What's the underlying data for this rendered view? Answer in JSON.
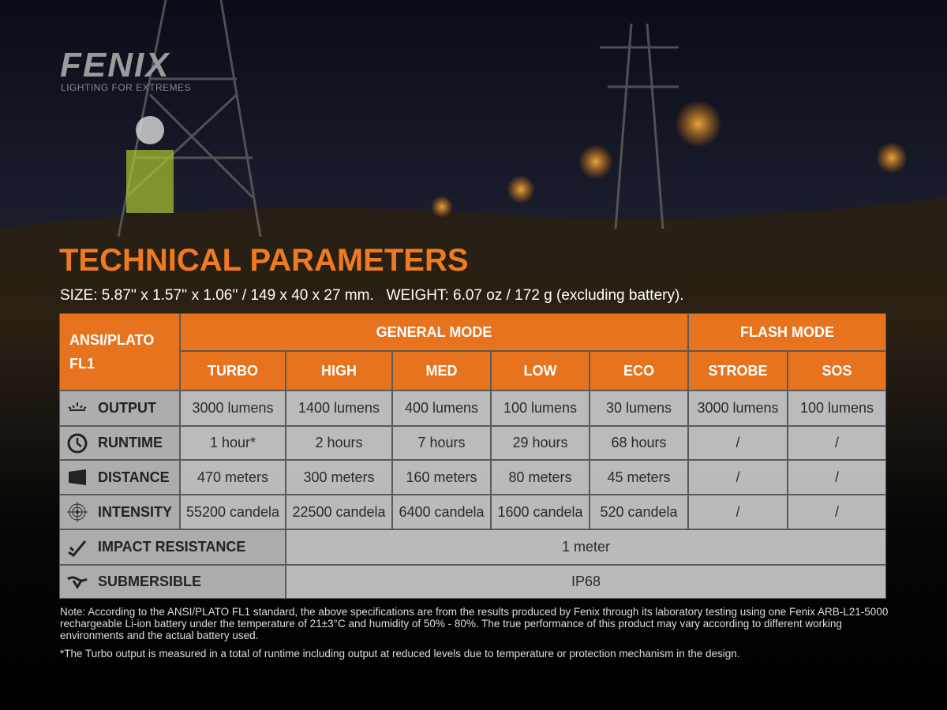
{
  "logo": {
    "brand": "FENIX",
    "tagline": "LIGHTING FOR EXTREMES"
  },
  "title": "TECHNICAL PARAMETERS",
  "size_line": "SIZE: 5.87'' x 1.57'' x 1.06'' / 149 x 40 x 27 mm.   WEIGHT: 6.07 oz / 172 g (excluding battery).",
  "table": {
    "corner": [
      "ANSI/PLATO",
      "FL1"
    ],
    "groups": [
      "GENERAL MODE",
      "FLASH MODE"
    ],
    "columns": [
      "TURBO",
      "HIGH",
      "MED",
      "LOW",
      "ECO",
      "STROBE",
      "SOS"
    ],
    "rows": [
      {
        "label": "OUTPUT",
        "cells": [
          "3000 lumens",
          "1400 lumens",
          "400 lumens",
          "100 lumens",
          "30 lumens",
          "3000 lumens",
          "100 lumens"
        ]
      },
      {
        "label": "RUNTIME",
        "cells": [
          "1 hour*",
          "2 hours",
          "7 hours",
          "29 hours",
          "68 hours",
          "/",
          "/"
        ]
      },
      {
        "label": "DISTANCE",
        "cells": [
          "470 meters",
          "300 meters",
          "160 meters",
          "80 meters",
          "45 meters",
          "/",
          "/"
        ]
      },
      {
        "label": "INTENSITY",
        "cells": [
          "55200 candela",
          "22500 candela",
          "6400 candela",
          "1600 candela",
          "520 candela",
          "/",
          "/"
        ]
      }
    ],
    "span_rows": [
      {
        "label": "IMPACT RESISTANCE",
        "value": "1 meter"
      },
      {
        "label": "SUBMERSIBLE",
        "value": "IP68"
      }
    ]
  },
  "notes": [
    "Note: According to the ANSI/PLATO FL1 standard, the above specifications are from the results produced by Fenix through its laboratory testing using one Fenix ARB-L21-5000 rechargeable Li-ion battery under the temperature of 21±3°C and humidity of 50% - 80%. The true performance of this product may vary according to different working environments and the actual battery used.",
    "*The Turbo output is measured in a total of runtime including output at reduced levels due to temperature or protection mechanism in the design."
  ]
}
